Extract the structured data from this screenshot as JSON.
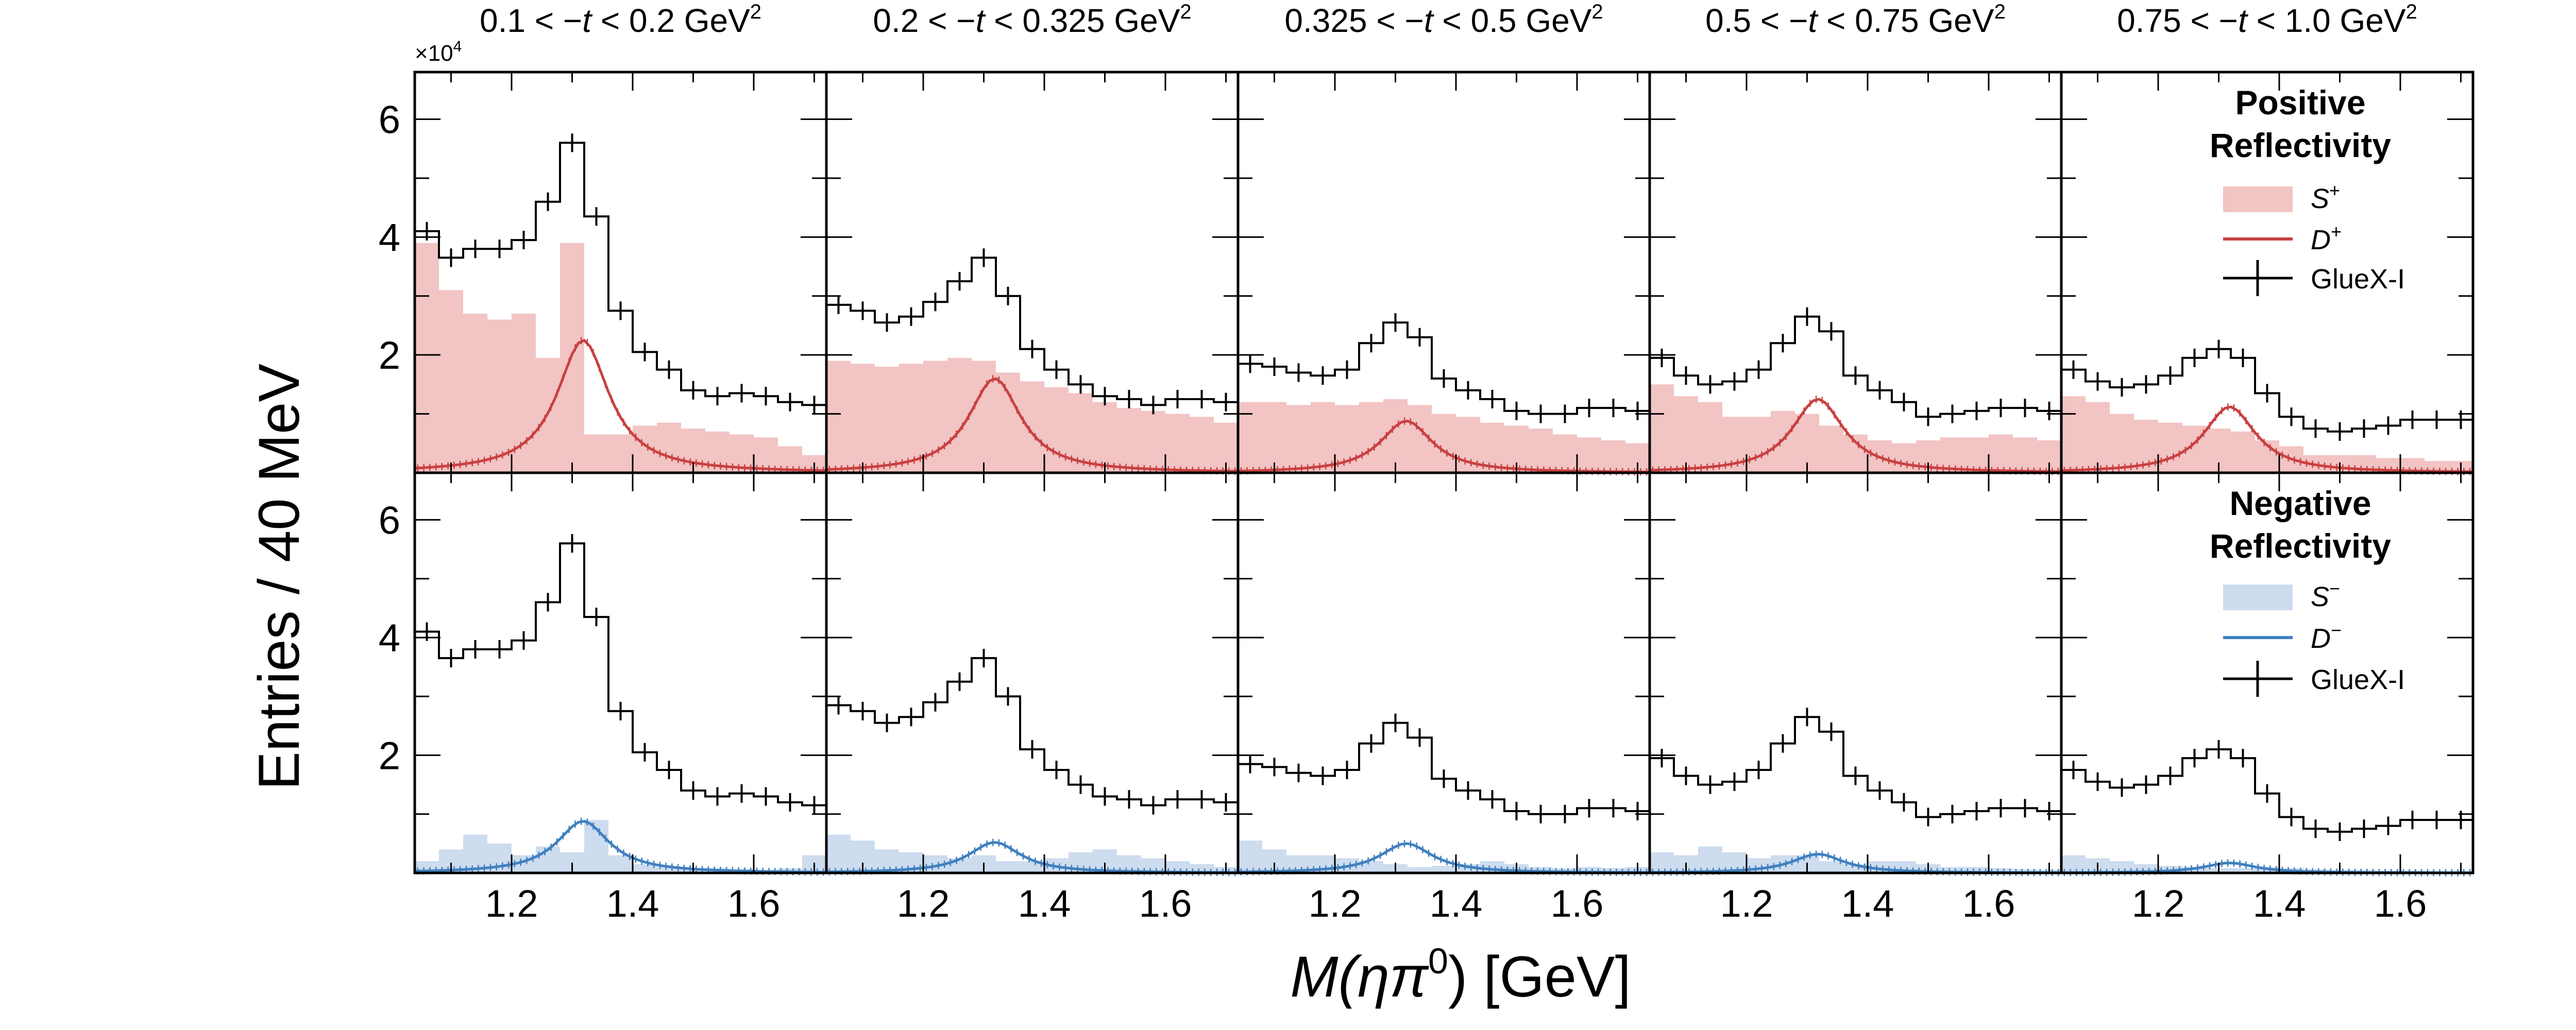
{
  "figure": {
    "ylabel": "Entries / 40 MeV",
    "xlabel_prefix": "M(",
    "xlabel_eta": "η",
    "xlabel_pi": "π",
    "xlabel_pi_sup": "0",
    "xlabel_suffix": ") [GeV]",
    "y_multiplier_base": "×10",
    "y_multiplier_exp": "4",
    "t_bin_titles": [
      {
        "lo": "0.1",
        "hi": "0.2",
        "unit": "GeV",
        "sup": "2"
      },
      {
        "lo": "0.2",
        "hi": "0.325",
        "unit": "GeV",
        "sup": "2"
      },
      {
        "lo": "0.325",
        "hi": "0.5",
        "unit": "GeV",
        "sup": "2"
      },
      {
        "lo": "0.5",
        "hi": "0.75",
        "unit": "GeV",
        "sup": "2"
      },
      {
        "lo": "0.75",
        "hi": "1.0",
        "unit": "GeV",
        "sup": "2"
      }
    ],
    "x_tick_labels": [
      "1.2",
      "1.4",
      "1.6"
    ],
    "y_tick_labels": [
      "2",
      "4",
      "6"
    ]
  },
  "legends": {
    "positive": {
      "title_line1": "Positive",
      "title_line2": "Reflectivity",
      "color": "#c94040",
      "s_label": "S",
      "s_sup": "+",
      "d_label": "D",
      "d_sup": "+",
      "data_label": "GlueX-I"
    },
    "negative": {
      "title_line1": "Negative",
      "title_line2": "Reflectivity",
      "color": "#3f7fbf",
      "s_label": "S",
      "s_sup": "−",
      "d_label": "D",
      "d_sup": "−",
      "data_label": "GlueX-I"
    }
  },
  "colors": {
    "positive_fill": "#f2c4c4",
    "positive_line": "#c94040",
    "negative_fill": "#cddcee",
    "negative_line": "#3f7fbf",
    "data": "#000000"
  },
  "chart_data": {
    "type": "histogram",
    "xlabel": "M(ηπ0) [GeV]",
    "ylabel": "Entries / 40 MeV",
    "y_scale_factor": 10000,
    "xlim": [
      1.04,
      1.72
    ],
    "ylim": [
      0,
      6.8
    ],
    "bin_edges": [
      1.04,
      1.08,
      1.12,
      1.16,
      1.2,
      1.24,
      1.28,
      1.32,
      1.36,
      1.4,
      1.44,
      1.48,
      1.52,
      1.56,
      1.6,
      1.64,
      1.68,
      1.72
    ],
    "d_wave_shape": {
      "function": "breit_wigner",
      "mass": 1.318,
      "width": 0.105
    },
    "panels": [
      {
        "t_bin": "0.1 < -t < 0.2 GeV^2",
        "data": [
          4.1,
          3.65,
          3.8,
          3.8,
          3.95,
          4.6,
          5.6,
          4.35,
          2.75,
          2.05,
          1.75,
          1.4,
          1.3,
          1.35,
          1.3,
          1.2,
          1.15
        ],
        "s_plus": [
          3.9,
          3.1,
          2.7,
          2.6,
          2.7,
          1.95,
          3.9,
          0.65,
          0.65,
          0.8,
          0.85,
          0.75,
          0.7,
          0.65,
          0.6,
          0.45,
          0.3
        ],
        "d_plus_peak": 2.25,
        "s_minus": [
          0.2,
          0.4,
          0.65,
          0.5,
          0.3,
          0.45,
          0.35,
          0.9,
          0.3,
          0.15,
          0.1,
          0.08,
          0.08,
          0.06,
          0.05,
          0.08,
          0.3
        ],
        "d_minus_peak": 0.88
      },
      {
        "t_bin": "0.2 < -t < 0.325 GeV^2",
        "data": [
          2.85,
          2.75,
          2.55,
          2.65,
          2.9,
          3.25,
          3.65,
          3.0,
          2.1,
          1.75,
          1.5,
          1.3,
          1.25,
          1.15,
          1.25,
          1.25,
          1.2
        ],
        "s_plus": [
          1.9,
          1.85,
          1.8,
          1.85,
          1.9,
          1.95,
          1.9,
          1.7,
          1.55,
          1.45,
          1.35,
          1.2,
          1.1,
          1.05,
          1.0,
          0.95,
          0.85
        ],
        "d_plus_peak": 1.6,
        "s_minus": [
          0.65,
          0.55,
          0.4,
          0.35,
          0.3,
          0.25,
          0.3,
          0.2,
          0.2,
          0.25,
          0.35,
          0.4,
          0.3,
          0.25,
          0.2,
          0.15,
          0.1
        ],
        "d_minus_peak": 0.52
      },
      {
        "t_bin": "0.325 < -t < 0.5 GeV^2",
        "data": [
          1.85,
          1.8,
          1.7,
          1.65,
          1.75,
          2.2,
          2.55,
          2.3,
          1.6,
          1.4,
          1.25,
          1.05,
          1.0,
          1.0,
          1.1,
          1.1,
          1.05
        ],
        "s_plus": [
          1.2,
          1.2,
          1.15,
          1.2,
          1.15,
          1.2,
          1.25,
          1.15,
          1.0,
          0.95,
          0.85,
          0.8,
          0.75,
          0.65,
          0.6,
          0.55,
          0.5
        ],
        "d_plus_peak": 0.88,
        "s_minus": [
          0.55,
          0.4,
          0.3,
          0.3,
          0.25,
          0.2,
          0.15,
          0.1,
          0.12,
          0.15,
          0.2,
          0.15,
          0.1,
          0.08,
          0.1,
          0.08,
          0.1
        ],
        "d_minus_peak": 0.5
      },
      {
        "t_bin": "0.5 < -t < 0.75 GeV^2",
        "data": [
          1.95,
          1.65,
          1.5,
          1.55,
          1.75,
          2.2,
          2.65,
          2.4,
          1.65,
          1.4,
          1.2,
          0.95,
          1.0,
          1.05,
          1.1,
          1.1,
          1.05
        ],
        "s_plus": [
          1.5,
          1.3,
          1.2,
          0.95,
          0.95,
          1.05,
          1.0,
          0.8,
          0.65,
          0.55,
          0.5,
          0.55,
          0.6,
          0.6,
          0.65,
          0.6,
          0.55
        ],
        "d_plus_peak": 1.25,
        "s_minus": [
          0.35,
          0.3,
          0.45,
          0.35,
          0.25,
          0.3,
          0.3,
          0.2,
          0.15,
          0.2,
          0.2,
          0.15,
          0.1,
          0.1,
          0.08,
          0.06,
          0.05
        ],
        "d_minus_peak": 0.32
      },
      {
        "t_bin": "0.75 < -t < 1.0 GeV^2",
        "data": [
          1.75,
          1.55,
          1.45,
          1.5,
          1.65,
          1.95,
          2.1,
          1.95,
          1.35,
          0.95,
          0.75,
          0.7,
          0.75,
          0.8,
          0.9,
          0.9,
          0.9
        ],
        "s_plus": [
          1.3,
          1.2,
          1.0,
          0.9,
          0.85,
          0.8,
          0.75,
          0.7,
          0.55,
          0.45,
          0.3,
          0.3,
          0.3,
          0.25,
          0.25,
          0.2,
          0.2
        ],
        "d_plus_peak": 1.12,
        "s_minus": [
          0.3,
          0.25,
          0.2,
          0.15,
          0.12,
          0.1,
          0.08,
          0.08,
          0.1,
          0.08,
          0.06,
          0.05,
          0.05,
          0.04,
          0.04,
          0.03,
          0.03
        ],
        "d_minus_peak": 0.17
      }
    ]
  }
}
